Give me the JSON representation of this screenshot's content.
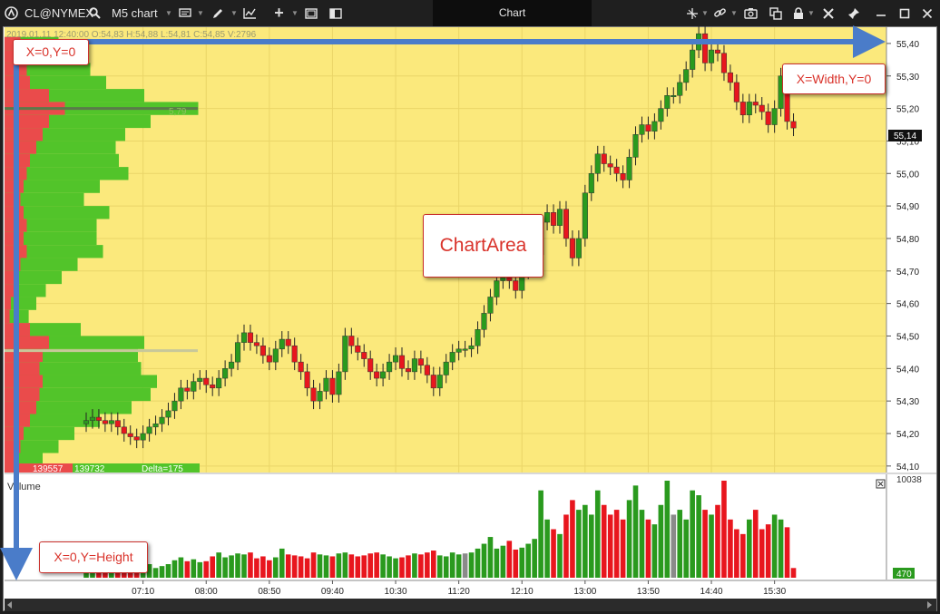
{
  "toolbar": {
    "symbol": "CL@NYMEX",
    "chart_name": "M5 chart",
    "window_title": "Chart",
    "icons_left": [
      "app-logo-icon",
      "search-icon",
      "chart-name-caret",
      "template-icon",
      "draw-pencil-icon",
      "indicators-icon",
      "crosshair-plus-icon",
      "window-icon",
      "layout-icon"
    ],
    "icons_right": [
      "cursor-icon",
      "link-icon",
      "camera-icon",
      "copy-window-icon",
      "lock-icon",
      "tools-icon",
      "pin-icon",
      "minimize-icon",
      "maximize-icon",
      "close-icon"
    ]
  },
  "chart": {
    "ohlc_readout": "2019.01.11 12:40:00 O:54,83 H:54,88 L:54,81 C:54,85 V:2796",
    "poc_label": "5,79",
    "current_price": "55,14",
    "profile_footer": {
      "left": "139557",
      "mid": "139732",
      "delta": "Delta=175"
    },
    "volume_label": "Volume",
    "volume_max": "10038",
    "volume_current": "470",
    "colors": {
      "chart_bg": "#fbe97c",
      "up": "#2a9a1e",
      "down": "#e8161e",
      "neutral": "#8a8a8a",
      "profile_up": "#52c42a",
      "profile_down": "#ea4b4b",
      "annotation": "#d9332b",
      "arrow": "#4a7cc9"
    }
  },
  "annotations": {
    "origin": "X=0,Y=0",
    "width": "X=Width,Y=0",
    "height": "X=0,Y=Height",
    "chart_area": "ChartArea"
  },
  "chart_data": {
    "type": "candlestick",
    "title": "",
    "interval_minutes": 5,
    "ylim": [
      54.08,
      55.45
    ],
    "price_ticks": [
      "55,40",
      "55,30",
      "55,20",
      "55,10",
      "55,00",
      "54,90",
      "54,80",
      "54,70",
      "54,60",
      "54,50",
      "54,40",
      "54,30",
      "54,20",
      "54,10"
    ],
    "time_ticks": [
      "07:10",
      "08:00",
      "08:50",
      "09:40",
      "10:30",
      "11:20",
      "12:10",
      "13:00",
      "13:50",
      "14:40",
      "15:30"
    ],
    "first_bar_time": "06:25",
    "closes": [
      54.24,
      54.25,
      54.24,
      54.23,
      54.24,
      54.22,
      54.2,
      54.19,
      54.18,
      54.2,
      54.22,
      54.23,
      54.25,
      54.27,
      54.3,
      54.34,
      54.33,
      54.36,
      54.37,
      54.35,
      54.34,
      54.37,
      54.4,
      54.42,
      54.48,
      54.51,
      54.48,
      54.47,
      54.44,
      54.42,
      54.46,
      54.49,
      54.47,
      54.42,
      54.39,
      54.34,
      54.3,
      54.33,
      54.37,
      54.32,
      54.39,
      54.5,
      54.47,
      54.45,
      54.43,
      54.39,
      54.37,
      54.39,
      54.42,
      54.44,
      54.4,
      54.39,
      54.43,
      54.41,
      54.38,
      54.34,
      54.38,
      54.42,
      54.45,
      54.46,
      54.46,
      54.47,
      54.52,
      54.57,
      54.62,
      54.67,
      54.68,
      54.67,
      54.64,
      54.7,
      54.73,
      54.75,
      54.85,
      54.88,
      54.84,
      54.89,
      54.8,
      54.74,
      54.8,
      54.94,
      55.0,
      55.06,
      55.03,
      55.02,
      55.0,
      54.98,
      55.05,
      55.12,
      55.15,
      55.13,
      55.16,
      55.2,
      55.24,
      55.24,
      55.28,
      55.32,
      55.38,
      55.43,
      55.34,
      55.38,
      55.37,
      55.31,
      55.28,
      55.22,
      55.18,
      55.22,
      55.21,
      55.19,
      55.15,
      55.2,
      55.3,
      55.16,
      55.14
    ],
    "volume": [
      100,
      120,
      90,
      110,
      130,
      100,
      90,
      120,
      150,
      110,
      140,
      100,
      120,
      140,
      180,
      210,
      170,
      190,
      160,
      170,
      220,
      260,
      210,
      230,
      250,
      240,
      260,
      200,
      220,
      180,
      210,
      300,
      240,
      230,
      220,
      200,
      260,
      240,
      230,
      220,
      250,
      260,
      240,
      220,
      230,
      250,
      260,
      240,
      220,
      200,
      210,
      230,
      250,
      240,
      260,
      280,
      230,
      220,
      260,
      240,
      250,
      260,
      300,
      350,
      420,
      300,
      330,
      380,
      290,
      310,
      350,
      400,
      900,
      600,
      500,
      450,
      650,
      800,
      700,
      750,
      650,
      900,
      750,
      650,
      700,
      600,
      800,
      950,
      700,
      600,
      550,
      750,
      1000,
      650,
      700,
      600,
      900,
      850,
      700,
      650,
      750,
      1000,
      600,
      500,
      450,
      600,
      700,
      500,
      550,
      650,
      600,
      520,
      100
    ],
    "volume_profile": [
      {
        "price": 55.4,
        "buy": 60,
        "sell": 25
      },
      {
        "price": 55.36,
        "buy": 80,
        "sell": 30
      },
      {
        "price": 55.32,
        "buy": 100,
        "sell": 35
      },
      {
        "price": 55.28,
        "buy": 120,
        "sell": 40
      },
      {
        "price": 55.24,
        "buy": 150,
        "sell": 70
      },
      {
        "price": 55.2,
        "buy": 210,
        "sell": 95
      },
      {
        "price": 55.16,
        "buy": 160,
        "sell": 70
      },
      {
        "price": 55.12,
        "buy": 130,
        "sell": 60
      },
      {
        "price": 55.08,
        "buy": 125,
        "sell": 50
      },
      {
        "price": 55.04,
        "buy": 140,
        "sell": 40
      },
      {
        "price": 55.0,
        "buy": 160,
        "sell": 35
      },
      {
        "price": 54.96,
        "buy": 120,
        "sell": 30
      },
      {
        "price": 54.92,
        "buy": 100,
        "sell": 25
      },
      {
        "price": 54.88,
        "buy": 135,
        "sell": 30
      },
      {
        "price": 54.84,
        "buy": 110,
        "sell": 35
      },
      {
        "price": 54.8,
        "buy": 115,
        "sell": 30
      },
      {
        "price": 54.76,
        "buy": 120,
        "sell": 35
      },
      {
        "price": 54.72,
        "buy": 90,
        "sell": 25
      },
      {
        "price": 54.68,
        "buy": 70,
        "sell": 20
      },
      {
        "price": 54.64,
        "buy": 50,
        "sell": 15
      },
      {
        "price": 54.6,
        "buy": 40,
        "sell": 10
      },
      {
        "price": 54.56,
        "buy": 30,
        "sell": 8
      },
      {
        "price": 54.52,
        "buy": 80,
        "sell": 40
      },
      {
        "price": 54.48,
        "buy": 150,
        "sell": 70
      },
      {
        "price": 54.44,
        "buy": 150,
        "sell": 60
      },
      {
        "price": 54.4,
        "buy": 160,
        "sell": 55
      },
      {
        "price": 54.36,
        "buy": 180,
        "sell": 60
      },
      {
        "price": 54.32,
        "buy": 175,
        "sell": 55
      },
      {
        "price": 54.28,
        "buy": 150,
        "sell": 50
      },
      {
        "price": 54.24,
        "buy": 110,
        "sell": 40
      },
      {
        "price": 54.2,
        "buy": 80,
        "sell": 30
      },
      {
        "price": 54.16,
        "buy": 60,
        "sell": 25
      },
      {
        "price": 54.12,
        "buy": 40,
        "sell": 20
      }
    ]
  }
}
